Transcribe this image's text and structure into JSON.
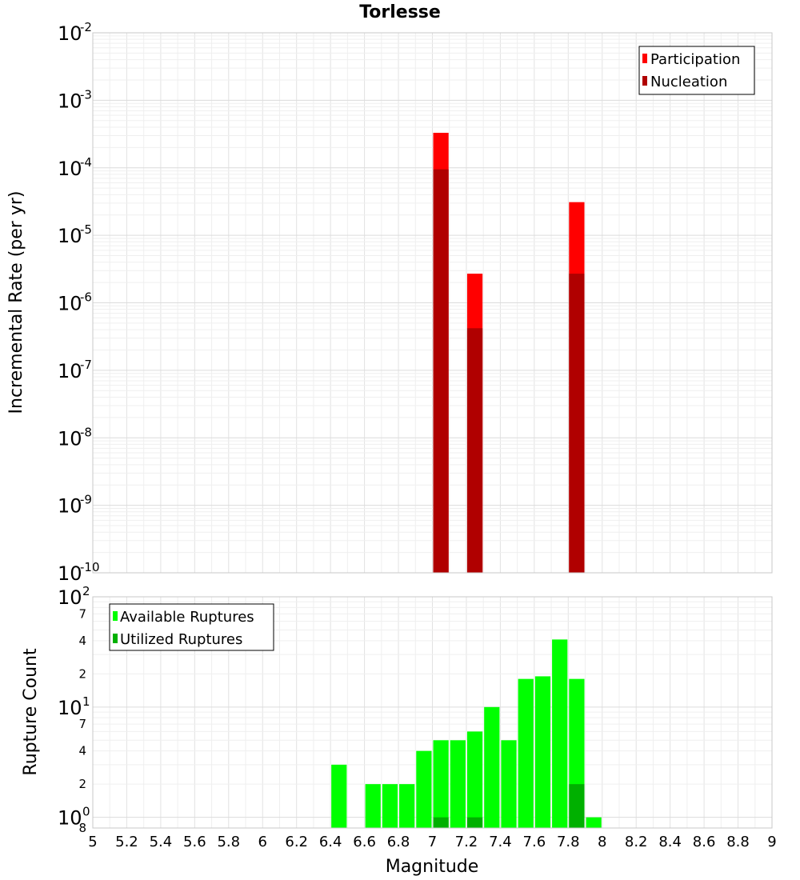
{
  "chart_data": [
    {
      "type": "bar",
      "title": "Torlesse",
      "ylabel": "Incremental Rate (per yr)",
      "xlabel": "",
      "y_scale": "log",
      "ylim": [
        1e-10,
        0.01
      ],
      "xlim": [
        5,
        9
      ],
      "bar_width": 0.1,
      "grid": true,
      "legend_position": "top-right",
      "y_tick_exponents": [
        "-2",
        "-3",
        "-4",
        "-5",
        "-6",
        "-7",
        "-8",
        "-9",
        "-10"
      ],
      "series": [
        {
          "name": "Participation",
          "color": "#ff0000",
          "points": [
            {
              "x": 7.05,
              "y": 0.00033
            },
            {
              "x": 7.25,
              "y": 2.7e-06
            },
            {
              "x": 7.85,
              "y": 3.1e-05
            }
          ]
        },
        {
          "name": "Nucleation",
          "color": "#b00000",
          "points": [
            {
              "x": 7.05,
              "y": 9.5e-05
            },
            {
              "x": 7.25,
              "y": 4.2e-07
            },
            {
              "x": 7.85,
              "y": 2.7e-06
            }
          ]
        }
      ]
    },
    {
      "type": "bar",
      "title": "",
      "ylabel": "Rupture Count",
      "xlabel": "Magnitude",
      "y_scale": "log",
      "ylim": [
        0.8,
        100
      ],
      "xlim": [
        5,
        9
      ],
      "bar_width": 0.1,
      "grid": true,
      "legend_position": "top-left",
      "x_ticks": [
        "5",
        "5.2",
        "5.4",
        "5.6",
        "5.8",
        "6",
        "6.2",
        "6.4",
        "6.6",
        "6.8",
        "7",
        "7.2",
        "7.4",
        "7.6",
        "7.8",
        "8",
        "8.2",
        "8.4",
        "8.6",
        "8.8",
        "9"
      ],
      "y_major_ticks": [
        {
          "base": "10",
          "exp": "2"
        },
        {
          "base": "10",
          "exp": "1"
        },
        {
          "base": "10",
          "exp": "0"
        }
      ],
      "y_minor_ticks": [
        "7",
        "4",
        "2",
        "7",
        "4",
        "2",
        "8"
      ],
      "series": [
        {
          "name": "Available Ruptures",
          "color": "#00ff00",
          "points": [
            {
              "x": 6.45,
              "y": 3
            },
            {
              "x": 6.65,
              "y": 2
            },
            {
              "x": 6.75,
              "y": 2
            },
            {
              "x": 6.85,
              "y": 2
            },
            {
              "x": 6.95,
              "y": 4
            },
            {
              "x": 7.05,
              "y": 5
            },
            {
              "x": 7.15,
              "y": 5
            },
            {
              "x": 7.25,
              "y": 6
            },
            {
              "x": 7.35,
              "y": 10
            },
            {
              "x": 7.45,
              "y": 5
            },
            {
              "x": 7.55,
              "y": 18
            },
            {
              "x": 7.65,
              "y": 19
            },
            {
              "x": 7.75,
              "y": 41
            },
            {
              "x": 7.85,
              "y": 18
            },
            {
              "x": 7.95,
              "y": 1
            }
          ]
        },
        {
          "name": "Utilized Ruptures",
          "color": "#00b000",
          "points": [
            {
              "x": 7.05,
              "y": 1
            },
            {
              "x": 7.25,
              "y": 1
            },
            {
              "x": 7.85,
              "y": 2
            }
          ]
        }
      ]
    }
  ]
}
